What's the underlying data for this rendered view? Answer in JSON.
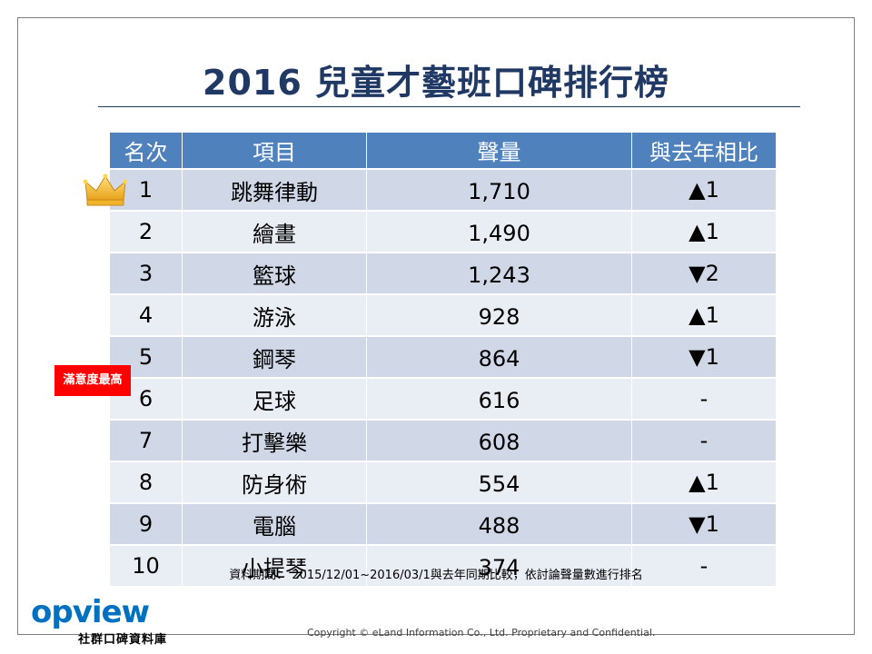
{
  "title": "2016 兒童才藝班口碑排行榜",
  "table": {
    "headers": [
      "名次",
      "項目",
      "聲量",
      "與去年相比"
    ],
    "rows": [
      {
        "rank": "1",
        "item": "跳舞律動",
        "volume": "1,710",
        "change": "▲1",
        "dir": "up"
      },
      {
        "rank": "2",
        "item": "繪畫",
        "volume": "1,490",
        "change": "▲1",
        "dir": "up"
      },
      {
        "rank": "3",
        "item": "籃球",
        "volume": "1,243",
        "change": "▼2",
        "dir": "down"
      },
      {
        "rank": "4",
        "item": "游泳",
        "volume": "928",
        "change": "▲1",
        "dir": "up"
      },
      {
        "rank": "5",
        "item": "鋼琴",
        "volume": "864",
        "change": "▼1",
        "dir": "down"
      },
      {
        "rank": "6",
        "item": "足球",
        "volume": "616",
        "change": "-",
        "dir": "flat"
      },
      {
        "rank": "7",
        "item": "打擊樂",
        "volume": "608",
        "change": "-",
        "dir": "flat"
      },
      {
        "rank": "8",
        "item": "防身術",
        "volume": "554",
        "change": "▲1",
        "dir": "up"
      },
      {
        "rank": "9",
        "item": "電腦",
        "volume": "488",
        "change": "▼1",
        "dir": "down"
      },
      {
        "rank": "10",
        "item": "小提琴",
        "volume": "374",
        "change": "-",
        "dir": "flat"
      }
    ]
  },
  "badge": "滿意度最高",
  "note": "資料期間： 2015/12/01~2016/03/1與去年同期比較，依討論聲量數進行排名",
  "logo": {
    "name": "opview",
    "subtitle": "社群口碑資料庫"
  },
  "copyright": "Copyright © eLand Information Co., Ltd. Proprietary and Confidential.",
  "colors": {
    "header_bg": "#4f81bd",
    "row_odd": "#d0d8e8",
    "row_even": "#e9edf4",
    "up": "#e00000",
    "down": "#1e9b3c",
    "title": "#1f3864",
    "badge": "#ff0000",
    "logo": "#0070c0"
  },
  "icons": {
    "crown": "crown-icon"
  }
}
